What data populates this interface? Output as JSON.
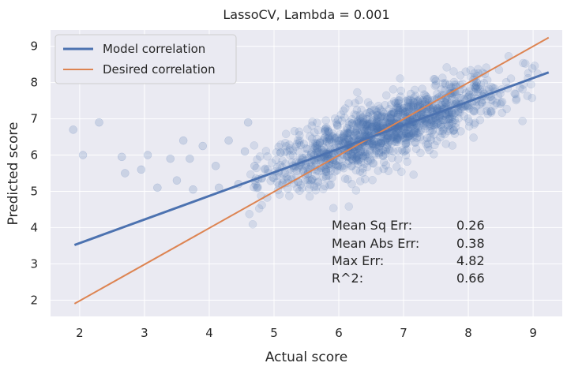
{
  "chart_data": {
    "type": "scatter",
    "title": "LassoCV, Lambda = 0.001",
    "xlabel": "Actual score",
    "ylabel": "Predicted score",
    "xlim": [
      1.55,
      9.45
    ],
    "ylim": [
      1.55,
      9.45
    ],
    "xticks": [
      "2",
      "3",
      "4",
      "5",
      "6",
      "7",
      "8",
      "9"
    ],
    "yticks": [
      "2",
      "3",
      "4",
      "5",
      "6",
      "7",
      "8",
      "9"
    ],
    "grid": true,
    "legend_position": "top-left",
    "colors": {
      "background": "#eaeaf2",
      "grid": "#ffffff",
      "points": "#4c72b0",
      "model_line": "#4c72b0",
      "desired_line": "#dd8452"
    },
    "series": [
      {
        "name": "Model correlation",
        "kind": "line",
        "x": [
          1.92,
          9.24
        ],
        "y": [
          3.52,
          8.28
        ]
      },
      {
        "name": "Desired correlation",
        "kind": "line",
        "x": [
          1.92,
          9.24
        ],
        "y": [
          1.9,
          9.24
        ]
      }
    ],
    "scatter_outliers": [
      {
        "x": 1.9,
        "y": 6.7
      },
      {
        "x": 2.05,
        "y": 6.0
      },
      {
        "x": 2.3,
        "y": 6.9
      },
      {
        "x": 2.65,
        "y": 5.95
      },
      {
        "x": 2.7,
        "y": 5.5
      },
      {
        "x": 2.95,
        "y": 5.6
      },
      {
        "x": 3.05,
        "y": 6.0
      },
      {
        "x": 3.2,
        "y": 5.1
      },
      {
        "x": 3.4,
        "y": 5.9
      },
      {
        "x": 3.5,
        "y": 5.3
      },
      {
        "x": 3.6,
        "y": 6.4
      },
      {
        "x": 3.7,
        "y": 5.9
      },
      {
        "x": 3.75,
        "y": 5.05
      },
      {
        "x": 3.9,
        "y": 6.25
      },
      {
        "x": 4.1,
        "y": 5.7
      },
      {
        "x": 4.15,
        "y": 5.1
      },
      {
        "x": 4.3,
        "y": 6.4
      },
      {
        "x": 4.45,
        "y": 5.2
      },
      {
        "x": 4.55,
        "y": 6.1
      },
      {
        "x": 4.6,
        "y": 6.9
      },
      {
        "x": 4.7,
        "y": 5.7
      }
    ],
    "scatter_cloud": {
      "x_range": [
        4.6,
        9.1
      ],
      "note_n": 1400,
      "fit_slope": 0.65,
      "fit_intercept": 2.27,
      "spread": 0.42
    },
    "annotations": [
      {
        "label": "Mean Sq Err:",
        "value": "0.26"
      },
      {
        "label": "Mean Abs Err:",
        "value": "0.38"
      },
      {
        "label": "Max Err:",
        "value": "4.82"
      },
      {
        "label": "R^2:",
        "value": "0.66"
      }
    ]
  }
}
